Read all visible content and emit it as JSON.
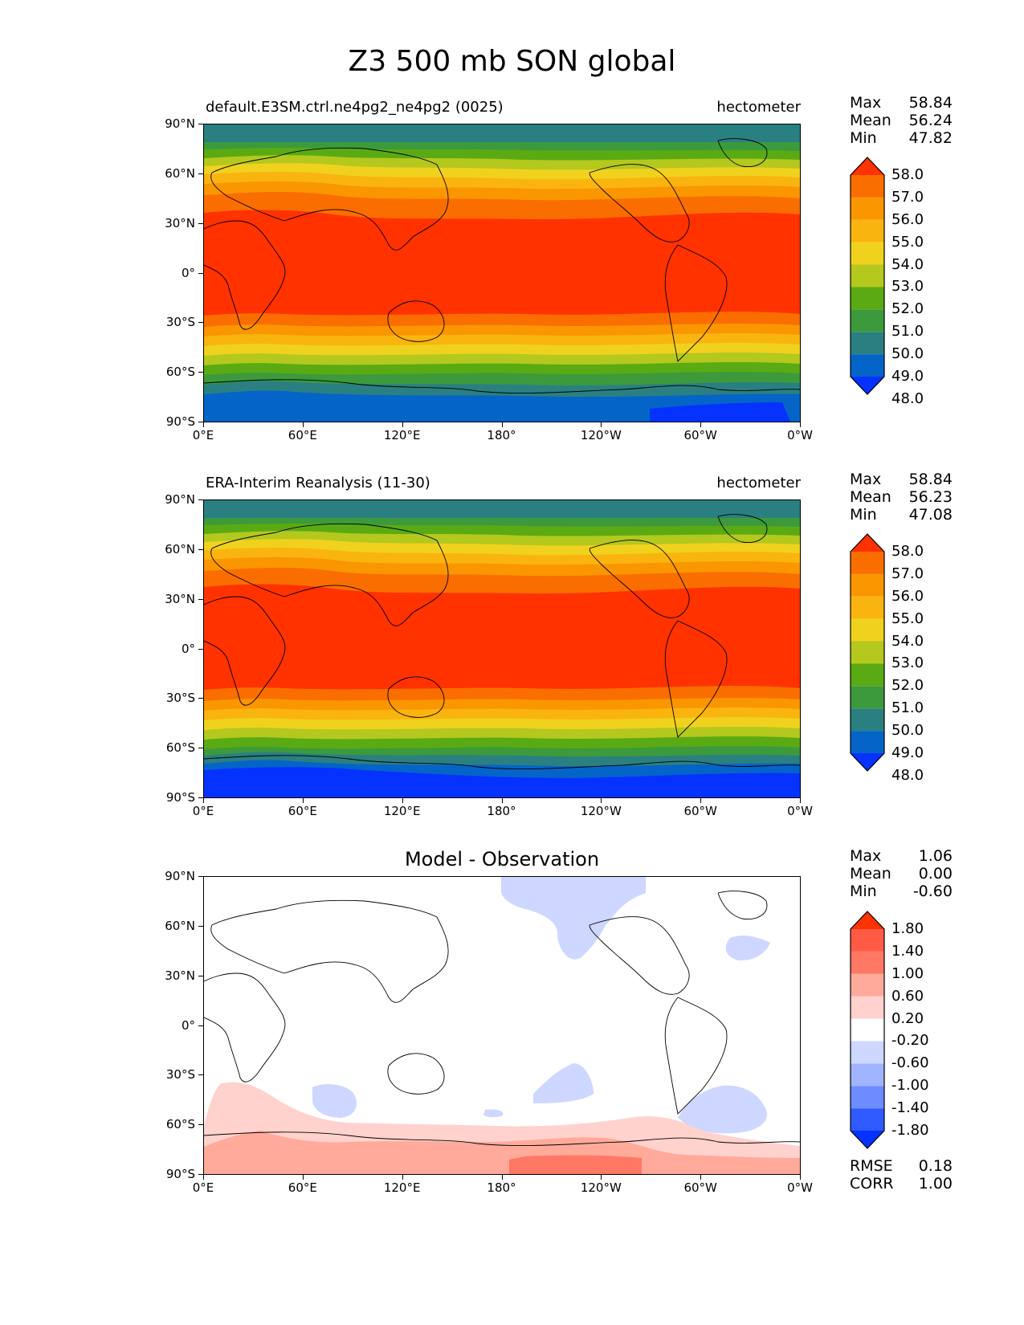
{
  "title": "Z3 500 mb SON global",
  "colors": {
    "clim": [
      "#0532ff",
      "#0564c8",
      "#2a8080",
      "#3c9a3c",
      "#5aaa14",
      "#b4c81e",
      "#f0d21e",
      "#fab40f",
      "#fa9600",
      "#fa6e00",
      "#ff3200"
    ],
    "diff": [
      "#0532ff",
      "#2f5aff",
      "#6e8cff",
      "#a0b4ff",
      "#cdd7ff",
      "#ffffff",
      "#ffd2cd",
      "#ffaa9b",
      "#ff7864",
      "#ff5a46",
      "#ff3200"
    ]
  },
  "axes": {
    "yticks": [
      "90°N",
      "60°N",
      "30°N",
      "0°",
      "30°S",
      "60°S",
      "90°S"
    ],
    "xticks": [
      "0°E",
      "60°E",
      "120°E",
      "180°",
      "120°W",
      "60°W",
      "0°W"
    ]
  },
  "panels": [
    {
      "left_title": "default.E3SM.ctrl.ne4pg2_ne4pg2 (0025)",
      "right_title": "hectometer",
      "stats": [
        {
          "label": "Max",
          "value": "58.84"
        },
        {
          "label": "Mean",
          "value": "56.24"
        },
        {
          "label": "Min",
          "value": "47.82"
        }
      ],
      "colorbar_labels": [
        "58.0",
        "57.0",
        "56.0",
        "55.0",
        "54.0",
        "53.0",
        "52.0",
        "51.0",
        "50.0",
        "49.0",
        "48.0"
      ]
    },
    {
      "left_title": "ERA-Interim Reanalysis (11-30)",
      "right_title": "hectometer",
      "stats": [
        {
          "label": "Max",
          "value": "58.84"
        },
        {
          "label": "Mean",
          "value": "56.23"
        },
        {
          "label": "Min",
          "value": "47.08"
        }
      ],
      "colorbar_labels": [
        "58.0",
        "57.0",
        "56.0",
        "55.0",
        "54.0",
        "53.0",
        "52.0",
        "51.0",
        "50.0",
        "49.0",
        "48.0"
      ]
    },
    {
      "center_title": "Model - Observation",
      "stats": [
        {
          "label": "Max",
          "value": "1.06"
        },
        {
          "label": "Mean",
          "value": "0.00"
        },
        {
          "label": "Min",
          "value": "-0.60"
        }
      ],
      "colorbar_labels": [
        "1.80",
        "1.40",
        "1.00",
        "0.60",
        "0.20",
        "-0.20",
        "-0.60",
        "-1.00",
        "-1.40",
        "-1.80"
      ],
      "metrics": [
        {
          "label": "RMSE",
          "value": "0.18"
        },
        {
          "label": "CORR",
          "value": "1.00"
        }
      ]
    }
  ]
}
